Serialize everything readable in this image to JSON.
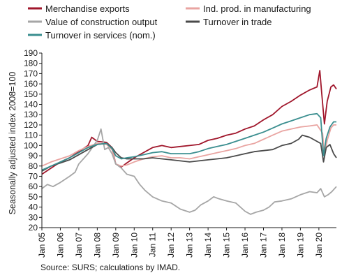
{
  "chart_data": {
    "type": "line",
    "xlabel": "",
    "ylabel": "Seasonally adjusted index 2008=100",
    "ylim": [
      20,
      190
    ],
    "yticks": [
      20,
      30,
      40,
      50,
      60,
      70,
      80,
      90,
      100,
      110,
      120,
      130,
      140,
      150,
      160,
      170,
      180,
      190
    ],
    "xlim": [
      2005.0,
      2020.95
    ],
    "xticks": [
      {
        "label": "Jan 05",
        "x": 2005
      },
      {
        "label": "Jan 06",
        "x": 2006
      },
      {
        "label": "Jan 07",
        "x": 2007
      },
      {
        "label": "Jan 08",
        "x": 2008
      },
      {
        "label": "Jan 09",
        "x": 2009
      },
      {
        "label": "Jan 10",
        "x": 2010
      },
      {
        "label": "Jan 11",
        "x": 2011
      },
      {
        "label": "Jan 12",
        "x": 2012
      },
      {
        "label": "Jan 13",
        "x": 2013
      },
      {
        "label": "Jan 14",
        "x": 2014
      },
      {
        "label": "Jan 15",
        "x": 2015
      },
      {
        "label": "Jan 16",
        "x": 2016
      },
      {
        "label": "Jan 17",
        "x": 2017
      },
      {
        "label": "Jan 18",
        "x": 2018
      },
      {
        "label": "Jan 19",
        "x": 2019
      },
      {
        "label": "Jan 20",
        "x": 2020
      }
    ],
    "grid": false,
    "legend_position": "top",
    "series": [
      {
        "name": "Merchandise exports",
        "color": "#a0162b",
        "points": [
          [
            2005.0,
            72
          ],
          [
            2005.5,
            78
          ],
          [
            2006.0,
            84
          ],
          [
            2006.5,
            88
          ],
          [
            2007.0,
            94
          ],
          [
            2007.5,
            100
          ],
          [
            2007.7,
            108
          ],
          [
            2008.0,
            104
          ],
          [
            2008.5,
            103
          ],
          [
            2008.8,
            98
          ],
          [
            2009.0,
            82
          ],
          [
            2009.3,
            79
          ],
          [
            2009.6,
            83
          ],
          [
            2010.0,
            88
          ],
          [
            2010.5,
            93
          ],
          [
            2011.0,
            98
          ],
          [
            2011.5,
            100
          ],
          [
            2012.0,
            98
          ],
          [
            2012.5,
            99
          ],
          [
            2013.0,
            100
          ],
          [
            2013.5,
            101
          ],
          [
            2014.0,
            105
          ],
          [
            2014.5,
            107
          ],
          [
            2015.0,
            110
          ],
          [
            2015.5,
            112
          ],
          [
            2016.0,
            116
          ],
          [
            2016.5,
            119
          ],
          [
            2017.0,
            125
          ],
          [
            2017.5,
            130
          ],
          [
            2018.0,
            138
          ],
          [
            2018.5,
            143
          ],
          [
            2019.0,
            149
          ],
          [
            2019.5,
            154
          ],
          [
            2019.9,
            157
          ],
          [
            2020.05,
            173
          ],
          [
            2020.15,
            152
          ],
          [
            2020.3,
            121
          ],
          [
            2020.45,
            143
          ],
          [
            2020.65,
            157
          ],
          [
            2020.8,
            159
          ],
          [
            2020.95,
            155
          ]
        ]
      },
      {
        "name": "Ind. prod. in manufacturing",
        "color": "#e9a4a1",
        "points": [
          [
            2005.0,
            80
          ],
          [
            2005.5,
            84
          ],
          [
            2006.0,
            87
          ],
          [
            2006.5,
            90
          ],
          [
            2007.0,
            95
          ],
          [
            2007.5,
            99
          ],
          [
            2008.0,
            102
          ],
          [
            2008.5,
            101
          ],
          [
            2008.8,
            96
          ],
          [
            2009.0,
            82
          ],
          [
            2009.3,
            80
          ],
          [
            2009.6,
            81
          ],
          [
            2010.0,
            84
          ],
          [
            2010.5,
            87
          ],
          [
            2011.0,
            89
          ],
          [
            2011.5,
            90
          ],
          [
            2012.0,
            88
          ],
          [
            2012.5,
            88
          ],
          [
            2013.0,
            87
          ],
          [
            2013.5,
            89
          ],
          [
            2014.0,
            91
          ],
          [
            2014.5,
            93
          ],
          [
            2015.0,
            95
          ],
          [
            2015.5,
            97
          ],
          [
            2016.0,
            100
          ],
          [
            2016.5,
            102
          ],
          [
            2017.0,
            106
          ],
          [
            2017.5,
            110
          ],
          [
            2018.0,
            114
          ],
          [
            2018.5,
            116
          ],
          [
            2019.0,
            118
          ],
          [
            2019.5,
            119
          ],
          [
            2019.9,
            120
          ],
          [
            2020.2,
            112
          ],
          [
            2020.3,
            90
          ],
          [
            2020.45,
            105
          ],
          [
            2020.65,
            117
          ],
          [
            2020.8,
            120
          ],
          [
            2020.95,
            120
          ]
        ]
      },
      {
        "name": "Value of construction output",
        "color": "#a6a6a6",
        "points": [
          [
            2005.0,
            58
          ],
          [
            2005.3,
            62
          ],
          [
            2005.6,
            60
          ],
          [
            2006.0,
            64
          ],
          [
            2006.5,
            70
          ],
          [
            2006.8,
            74
          ],
          [
            2007.0,
            82
          ],
          [
            2007.5,
            92
          ],
          [
            2008.0,
            105
          ],
          [
            2008.2,
            116
          ],
          [
            2008.4,
            96
          ],
          [
            2008.6,
            98
          ],
          [
            2008.8,
            92
          ],
          [
            2009.0,
            82
          ],
          [
            2009.3,
            78
          ],
          [
            2009.6,
            72
          ],
          [
            2010.0,
            70
          ],
          [
            2010.3,
            62
          ],
          [
            2010.6,
            56
          ],
          [
            2011.0,
            50
          ],
          [
            2011.5,
            46
          ],
          [
            2012.0,
            44
          ],
          [
            2012.5,
            38
          ],
          [
            2013.0,
            35
          ],
          [
            2013.3,
            37
          ],
          [
            2013.6,
            42
          ],
          [
            2014.0,
            46
          ],
          [
            2014.3,
            50
          ],
          [
            2014.6,
            48
          ],
          [
            2015.0,
            46
          ],
          [
            2015.5,
            44
          ],
          [
            2016.0,
            36
          ],
          [
            2016.3,
            33
          ],
          [
            2016.6,
            35
          ],
          [
            2017.0,
            37
          ],
          [
            2017.3,
            40
          ],
          [
            2017.6,
            45
          ],
          [
            2018.0,
            46
          ],
          [
            2018.5,
            48
          ],
          [
            2019.0,
            52
          ],
          [
            2019.5,
            55
          ],
          [
            2019.9,
            54
          ],
          [
            2020.1,
            58
          ],
          [
            2020.3,
            50
          ],
          [
            2020.5,
            52
          ],
          [
            2020.7,
            55
          ],
          [
            2020.95,
            60
          ]
        ]
      },
      {
        "name": "Turnover in trade",
        "color": "#4a4a4a",
        "points": [
          [
            2005.0,
            75
          ],
          [
            2005.5,
            80
          ],
          [
            2006.0,
            83
          ],
          [
            2006.5,
            86
          ],
          [
            2007.0,
            91
          ],
          [
            2007.5,
            96
          ],
          [
            2008.0,
            101
          ],
          [
            2008.5,
            102
          ],
          [
            2008.8,
            98
          ],
          [
            2009.0,
            93
          ],
          [
            2009.3,
            88
          ],
          [
            2009.6,
            87
          ],
          [
            2010.0,
            87
          ],
          [
            2010.5,
            87
          ],
          [
            2011.0,
            88
          ],
          [
            2011.5,
            87
          ],
          [
            2012.0,
            86
          ],
          [
            2012.5,
            85
          ],
          [
            2013.0,
            84
          ],
          [
            2013.5,
            85
          ],
          [
            2014.0,
            86
          ],
          [
            2014.5,
            87
          ],
          [
            2015.0,
            88
          ],
          [
            2015.5,
            90
          ],
          [
            2016.0,
            92
          ],
          [
            2016.5,
            94
          ],
          [
            2017.0,
            95
          ],
          [
            2017.5,
            96
          ],
          [
            2018.0,
            100
          ],
          [
            2018.5,
            102
          ],
          [
            2018.9,
            106
          ],
          [
            2019.1,
            110
          ],
          [
            2019.5,
            108
          ],
          [
            2019.9,
            104
          ],
          [
            2020.1,
            102
          ],
          [
            2020.25,
            84
          ],
          [
            2020.4,
            98
          ],
          [
            2020.6,
            101
          ],
          [
            2020.8,
            92
          ],
          [
            2020.95,
            88
          ]
        ]
      },
      {
        "name": "Turnover in services (nom.)",
        "color": "#3a8e8f",
        "points": [
          [
            2005.0,
            76
          ],
          [
            2005.5,
            80
          ],
          [
            2006.0,
            84
          ],
          [
            2006.5,
            88
          ],
          [
            2007.0,
            93
          ],
          [
            2007.5,
            98
          ],
          [
            2008.0,
            101
          ],
          [
            2008.5,
            102
          ],
          [
            2008.8,
            97
          ],
          [
            2009.0,
            90
          ],
          [
            2009.3,
            87
          ],
          [
            2009.6,
            88
          ],
          [
            2010.0,
            89
          ],
          [
            2010.5,
            91
          ],
          [
            2011.0,
            93
          ],
          [
            2011.5,
            94
          ],
          [
            2012.0,
            92
          ],
          [
            2012.5,
            92
          ],
          [
            2013.0,
            92
          ],
          [
            2013.5,
            94
          ],
          [
            2014.0,
            97
          ],
          [
            2014.5,
            99
          ],
          [
            2015.0,
            101
          ],
          [
            2015.5,
            104
          ],
          [
            2016.0,
            107
          ],
          [
            2016.5,
            110
          ],
          [
            2017.0,
            113
          ],
          [
            2017.5,
            117
          ],
          [
            2018.0,
            121
          ],
          [
            2018.5,
            124
          ],
          [
            2019.0,
            127
          ],
          [
            2019.5,
            130
          ],
          [
            2019.9,
            131
          ],
          [
            2020.1,
            127
          ],
          [
            2020.25,
            90
          ],
          [
            2020.4,
            107
          ],
          [
            2020.6,
            118
          ],
          [
            2020.8,
            123
          ],
          [
            2020.95,
            123
          ]
        ]
      }
    ]
  },
  "source_note": "Source: SURS; calculations by IMAD."
}
